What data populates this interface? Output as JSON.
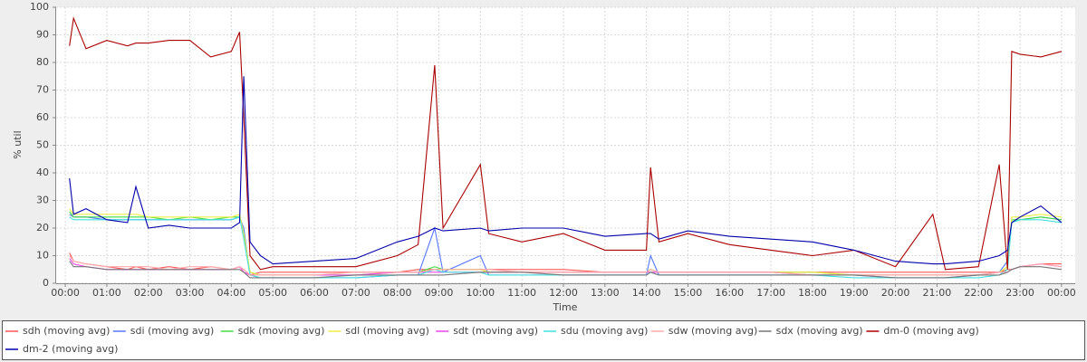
{
  "chart_data": {
    "type": "line",
    "x_label": "Time",
    "y_label": "% util",
    "xlim": [
      -0.22,
      24.33
    ],
    "ylim": [
      0,
      100
    ],
    "xticks": [
      {
        "value": 0,
        "label": "00:00"
      },
      {
        "value": 1,
        "label": "01:00"
      },
      {
        "value": 2,
        "label": "02:00"
      },
      {
        "value": 3,
        "label": "03:00"
      },
      {
        "value": 4,
        "label": "04:00"
      },
      {
        "value": 5,
        "label": "05:00"
      },
      {
        "value": 6,
        "label": "06:00"
      },
      {
        "value": 7,
        "label": "07:00"
      },
      {
        "value": 8,
        "label": "08:00"
      },
      {
        "value": 9,
        "label": "09:00"
      },
      {
        "value": 10,
        "label": "10:00"
      },
      {
        "value": 11,
        "label": "11:00"
      },
      {
        "value": 12,
        "label": "12:00"
      },
      {
        "value": 13,
        "label": "13:00"
      },
      {
        "value": 14,
        "label": "14:00"
      },
      {
        "value": 15,
        "label": "15:00"
      },
      {
        "value": 16,
        "label": "16:00"
      },
      {
        "value": 17,
        "label": "17:00"
      },
      {
        "value": 18,
        "label": "18:00"
      },
      {
        "value": 19,
        "label": "19:00"
      },
      {
        "value": 20,
        "label": "20:00"
      },
      {
        "value": 21,
        "label": "21:00"
      },
      {
        "value": 22,
        "label": "22:00"
      },
      {
        "value": 23,
        "label": "23:00"
      },
      {
        "value": 24,
        "label": "00:00"
      }
    ],
    "yticks": [
      0,
      10,
      20,
      30,
      40,
      50,
      60,
      70,
      80,
      90,
      100
    ],
    "grid": true,
    "legend": "bottom",
    "x": [
      0.1,
      0.2,
      0.5,
      1,
      1.5,
      1.7,
      2,
      2.5,
      3,
      3.5,
      4,
      4.2,
      4.3,
      4.45,
      4.7,
      5,
      6,
      7,
      8,
      8.5,
      8.9,
      9.1,
      10,
      10.2,
      11,
      12,
      13,
      14,
      14.1,
      14.3,
      15,
      16,
      17,
      18,
      19,
      20,
      20.9,
      21.2,
      22,
      22.5,
      22.7,
      22.8,
      23,
      23.5,
      24
    ],
    "series": [
      {
        "name": "sdh (moving avg)",
        "color": "#ff5555",
        "values": [
          11,
          8,
          7,
          6,
          5,
          6,
          5,
          6,
          5,
          6,
          5,
          6,
          5,
          3,
          4,
          4,
          4,
          4,
          4,
          5,
          5,
          5,
          5,
          5,
          5,
          5,
          4,
          4,
          5,
          4,
          4,
          4,
          4,
          4,
          4,
          4,
          4,
          4,
          4,
          4,
          5,
          5,
          6,
          7,
          7
        ]
      },
      {
        "name": "sdi (moving avg)",
        "color": "#5577ff",
        "values": [
          25,
          24,
          24,
          23,
          23,
          23,
          23,
          23,
          23,
          23,
          23,
          24,
          20,
          3,
          2,
          2,
          2,
          2,
          3,
          3,
          20,
          4,
          10,
          3,
          3,
          3,
          3,
          3,
          10,
          3,
          3,
          3,
          3,
          3,
          3,
          2,
          2,
          2,
          3,
          4,
          8,
          22,
          23,
          24,
          23
        ]
      },
      {
        "name": "sdk (moving avg)",
        "color": "#44dd44",
        "values": [
          26,
          24,
          24,
          24,
          24,
          24,
          24,
          23,
          24,
          23,
          24,
          24,
          18,
          4,
          3,
          3,
          3,
          3,
          4,
          4,
          6,
          5,
          5,
          4,
          4,
          4,
          4,
          4,
          5,
          4,
          4,
          4,
          4,
          4,
          3,
          3,
          3,
          3,
          3,
          4,
          6,
          23,
          23,
          24,
          23
        ]
      },
      {
        "name": "sdl (moving avg)",
        "color": "#eeee44",
        "values": [
          27,
          25,
          25,
          25,
          25,
          25,
          24,
          24,
          24,
          24,
          24,
          25,
          18,
          4,
          3,
          3,
          3,
          3,
          4,
          4,
          5,
          5,
          5,
          4,
          4,
          4,
          4,
          4,
          5,
          4,
          4,
          4,
          4,
          4,
          3,
          3,
          3,
          3,
          3,
          4,
          6,
          24,
          24,
          25,
          24
        ]
      },
      {
        "name": "sdt (moving avg)",
        "color": "#ee44ee",
        "values": [
          9,
          7,
          6,
          5,
          5,
          5,
          5,
          5,
          5,
          5,
          5,
          6,
          4,
          3,
          3,
          3,
          3,
          3,
          4,
          4,
          4,
          4,
          4,
          4,
          4,
          4,
          4,
          4,
          4,
          4,
          4,
          4,
          4,
          3,
          3,
          3,
          3,
          3,
          3,
          4,
          4,
          5,
          6,
          7,
          6
        ]
      },
      {
        "name": "sdu (moving avg)",
        "color": "#44e0e0",
        "values": [
          24,
          23,
          23,
          23,
          23,
          23,
          23,
          23,
          23,
          23,
          23,
          24,
          16,
          3,
          2,
          2,
          2,
          2,
          3,
          3,
          5,
          4,
          4,
          3,
          3,
          3,
          3,
          3,
          4,
          3,
          3,
          3,
          3,
          3,
          2,
          2,
          2,
          2,
          2,
          3,
          5,
          22,
          23,
          23,
          22
        ]
      },
      {
        "name": "sdw (moving avg)",
        "color": "#ffaaaa",
        "values": [
          10,
          8,
          7,
          6,
          6,
          6,
          6,
          5,
          6,
          6,
          5,
          6,
          5,
          3,
          3,
          3,
          3,
          4,
          4,
          4,
          5,
          5,
          5,
          5,
          4,
          4,
          4,
          4,
          5,
          4,
          4,
          4,
          4,
          3,
          3,
          3,
          3,
          3,
          3,
          4,
          4,
          5,
          6,
          7,
          6
        ]
      },
      {
        "name": "sdx (moving avg)",
        "color": "#777777",
        "values": [
          8,
          6,
          6,
          5,
          5,
          5,
          5,
          5,
          5,
          5,
          5,
          5,
          4,
          2,
          2,
          2,
          2,
          3,
          3,
          3,
          3,
          3,
          4,
          4,
          4,
          3,
          3,
          3,
          4,
          3,
          3,
          3,
          3,
          3,
          3,
          2,
          2,
          2,
          3,
          3,
          4,
          5,
          6,
          6,
          5
        ]
      },
      {
        "name": "dm-0 (moving avg)",
        "color": "#aa0000",
        "values": [
          86,
          96,
          85,
          88,
          86,
          87,
          87,
          88,
          88,
          82,
          84,
          91,
          60,
          10,
          5,
          6,
          6,
          6,
          10,
          14,
          79,
          20,
          43,
          18,
          15,
          18,
          12,
          12,
          42,
          15,
          18,
          14,
          12,
          10,
          12,
          6,
          25,
          5,
          6,
          43,
          5,
          84,
          83,
          82,
          84
        ]
      },
      {
        "name": "dm-2 (moving avg)",
        "color": "#0000aa",
        "values": [
          38,
          25,
          27,
          23,
          22,
          35,
          20,
          21,
          20,
          20,
          20,
          22,
          75,
          15,
          10,
          7,
          8,
          9,
          15,
          17,
          20,
          19,
          20,
          19,
          20,
          20,
          17,
          18,
          18,
          16,
          19,
          17,
          16,
          15,
          12,
          8,
          7,
          7,
          8,
          10,
          12,
          22,
          24,
          28,
          22
        ]
      }
    ]
  }
}
